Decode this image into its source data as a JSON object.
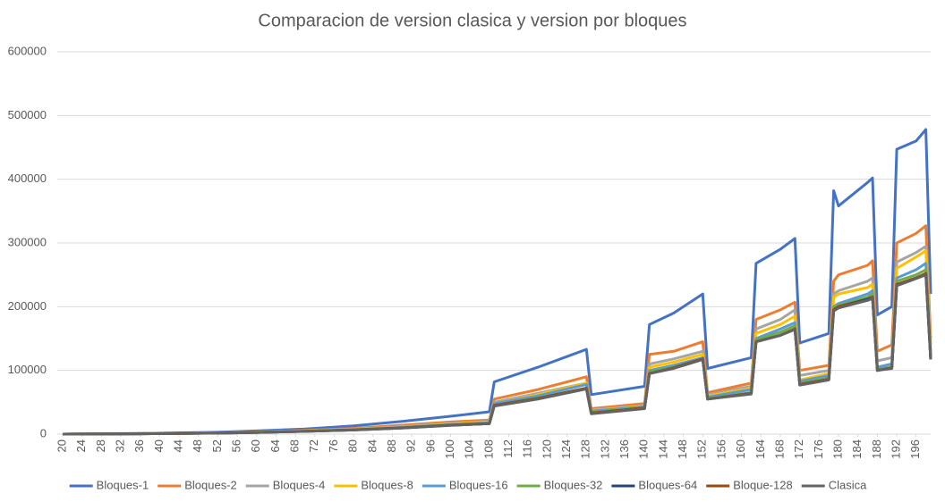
{
  "chart_data": {
    "type": "line",
    "title": "Comparacion de version clasica y version por bloques",
    "x": [
      20,
      36,
      52,
      60,
      70,
      80,
      90,
      100,
      108,
      109,
      118,
      128,
      129,
      140,
      141,
      146,
      152,
      153,
      162,
      163,
      168,
      171,
      172,
      178,
      179,
      180,
      186,
      187,
      188,
      191,
      192,
      196,
      198,
      199
    ],
    "xlim": [
      20,
      199
    ],
    "xticks": [
      20,
      24,
      28,
      32,
      36,
      40,
      44,
      48,
      52,
      56,
      60,
      64,
      68,
      72,
      76,
      80,
      84,
      88,
      92,
      96,
      100,
      104,
      108,
      112,
      116,
      120,
      124,
      128,
      132,
      136,
      140,
      144,
      148,
      152,
      156,
      160,
      164,
      168,
      172,
      176,
      180,
      184,
      188,
      192,
      196
    ],
    "ylim": [
      0,
      600000
    ],
    "yticks": [
      0,
      100000,
      200000,
      300000,
      400000,
      500000,
      600000
    ],
    "grid": true,
    "legend": "bottom",
    "series": [
      {
        "name": "Bloques-1",
        "color": "#4472c4",
        "values": [
          0,
          1000,
          3000,
          5000,
          8000,
          13000,
          20000,
          28000,
          35000,
          82000,
          105000,
          133000,
          62000,
          75000,
          172000,
          190000,
          220000,
          103000,
          120000,
          268000,
          290000,
          307000,
          143000,
          158000,
          382000,
          358000,
          395000,
          402000,
          187000,
          200000,
          447000,
          460000,
          478000,
          220000
        ]
      },
      {
        "name": "Bloques-2",
        "color": "#ed7d31",
        "values": [
          0,
          800,
          2000,
          3500,
          6000,
          9000,
          14000,
          19000,
          22000,
          55000,
          70000,
          90000,
          40000,
          48000,
          125000,
          130000,
          145000,
          65000,
          80000,
          180000,
          195000,
          207000,
          100000,
          108000,
          240000,
          250000,
          265000,
          272000,
          130000,
          140000,
          300000,
          315000,
          327000,
          150000
        ]
      },
      {
        "name": "Bloques-4",
        "color": "#a5a5a5",
        "values": [
          0,
          700,
          1800,
          3200,
          5500,
          8000,
          12000,
          17000,
          20000,
          50000,
          64000,
          80000,
          38000,
          45000,
          110000,
          118000,
          130000,
          62000,
          75000,
          165000,
          180000,
          195000,
          92000,
          100000,
          220000,
          225000,
          240000,
          245000,
          115000,
          120000,
          270000,
          285000,
          295000,
          140000
        ]
      },
      {
        "name": "Bloques-8",
        "color": "#ffc000",
        "values": [
          0,
          700,
          1700,
          3000,
          5000,
          7500,
          11000,
          16000,
          19000,
          48000,
          62000,
          80000,
          37000,
          44000,
          105000,
          113000,
          125000,
          60000,
          72000,
          158000,
          172000,
          185000,
          85000,
          95000,
          215000,
          220000,
          230000,
          235000,
          105000,
          110000,
          260000,
          278000,
          288000,
          130000
        ]
      },
      {
        "name": "Bloques-16",
        "color": "#5b9bd5",
        "values": [
          0,
          650,
          1600,
          2900,
          4800,
          7000,
          10500,
          15000,
          18000,
          48000,
          60000,
          78000,
          36000,
          43000,
          100000,
          108000,
          120000,
          58000,
          70000,
          150000,
          165000,
          175000,
          83000,
          92000,
          200000,
          205000,
          220000,
          225000,
          105000,
          110000,
          245000,
          258000,
          268000,
          125000
        ]
      },
      {
        "name": "Bloques-32",
        "color": "#70ad47",
        "values": [
          0,
          600,
          1500,
          2800,
          4500,
          6800,
          10000,
          14500,
          17000,
          45000,
          57000,
          72000,
          34000,
          42000,
          98000,
          105000,
          118000,
          56000,
          65000,
          148000,
          160000,
          170000,
          80000,
          88000,
          200000,
          202000,
          215000,
          220000,
          102000,
          105000,
          240000,
          250000,
          258000,
          118000
        ]
      },
      {
        "name": "Bloques-64",
        "color": "#264478",
        "values": [
          0,
          600,
          1500,
          2700,
          4400,
          6600,
          9800,
          14000,
          16500,
          45000,
          56000,
          72000,
          33000,
          41000,
          95000,
          104000,
          118000,
          55000,
          64000,
          145000,
          155000,
          165000,
          78000,
          86000,
          195000,
          200000,
          212000,
          215000,
          100000,
          104000,
          235000,
          245000,
          252000,
          118000
        ]
      },
      {
        "name": "Bloque-128",
        "color": "#9e480e",
        "values": [
          0,
          600,
          1500,
          2700,
          4400,
          6500,
          9700,
          14000,
          16500,
          45000,
          56000,
          72000,
          33000,
          41000,
          95000,
          104000,
          118000,
          55000,
          64000,
          145000,
          155000,
          165000,
          78000,
          86000,
          195000,
          200000,
          210000,
          215000,
          100000,
          104000,
          235000,
          245000,
          252000,
          118000
        ]
      },
      {
        "name": "Clasica",
        "color": "#636363",
        "values": [
          0,
          600,
          1500,
          2700,
          4300,
          6500,
          9600,
          13800,
          16500,
          44000,
          55000,
          71000,
          32000,
          40000,
          95000,
          103000,
          117000,
          55000,
          63000,
          145000,
          155000,
          164000,
          77000,
          85000,
          193000,
          198000,
          210000,
          213000,
          100000,
          103000,
          233000,
          244000,
          250000,
          117000
        ]
      }
    ]
  }
}
